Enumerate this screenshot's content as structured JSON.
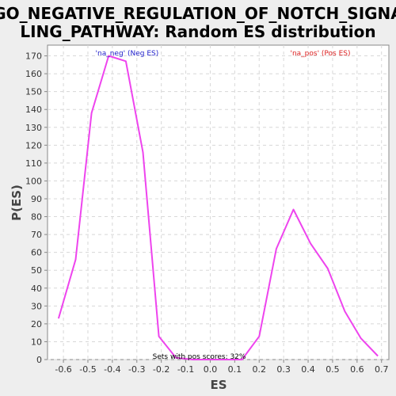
{
  "chart_data": {
    "type": "line",
    "title_line1": "GO_NEGATIVE_REGULATION_OF_NOTCH_SIGNA",
    "title_line2": "LING_PATHWAY: Random ES distribution",
    "xlabel": "ES",
    "ylabel": "P(ES)",
    "xlim": [
      -0.665,
      0.73
    ],
    "ylim": [
      0,
      176
    ],
    "xticks": [
      "-0.6",
      "-0.5",
      "-0.4",
      "-0.3",
      "-0.2",
      "-0.1",
      "0.0",
      "0.1",
      "0.2",
      "0.3",
      "0.4",
      "0.5",
      "0.6",
      "0.7"
    ],
    "xtick_values": [
      -0.6,
      -0.5,
      -0.4,
      -0.3,
      -0.2,
      -0.1,
      0.0,
      0.1,
      0.2,
      0.3,
      0.4,
      0.5,
      0.6,
      0.7
    ],
    "yticks": [
      "0",
      "10",
      "20",
      "30",
      "40",
      "50",
      "60",
      "70",
      "80",
      "90",
      "100",
      "110",
      "120",
      "130",
      "140",
      "150",
      "160",
      "170"
    ],
    "ytick_values": [
      0,
      10,
      20,
      30,
      40,
      50,
      60,
      70,
      80,
      90,
      100,
      110,
      120,
      130,
      140,
      150,
      160,
      170
    ],
    "grid": true,
    "series": [
      {
        "color": "#ee44ee",
        "x": [
          -0.62,
          -0.55,
          -0.485,
          -0.415,
          -0.345,
          -0.275,
          -0.21,
          -0.14,
          -0.07,
          0.0,
          0.06,
          0.13,
          0.2,
          0.27,
          0.34,
          0.41,
          0.48,
          0.55,
          0.615,
          0.685
        ],
        "y": [
          23,
          56,
          138,
          170,
          167,
          116,
          13,
          1,
          0,
          0,
          0,
          0,
          13,
          62,
          84,
          65,
          51,
          27,
          12,
          2
        ]
      }
    ],
    "annotations": [
      {
        "text": "'na_neg' (Neg ES)",
        "color": "#2222cc"
      },
      {
        "text": "'na_pos' (Pos ES)",
        "color": "#dd2222"
      },
      {
        "text": "Sets with pos scores: 32%",
        "color": "#000000"
      }
    ]
  }
}
